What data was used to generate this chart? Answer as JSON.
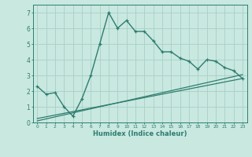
{
  "x": [
    0,
    1,
    2,
    3,
    4,
    5,
    6,
    7,
    8,
    9,
    10,
    11,
    12,
    13,
    14,
    15,
    16,
    17,
    18,
    19,
    20,
    21,
    22,
    23
  ],
  "y_main": [
    2.3,
    1.8,
    1.9,
    1.0,
    0.4,
    1.5,
    3.0,
    5.0,
    7.0,
    6.0,
    6.5,
    5.8,
    5.8,
    5.2,
    4.5,
    4.5,
    4.1,
    3.9,
    3.4,
    4.0,
    3.9,
    3.5,
    3.3,
    2.8
  ],
  "line_color": "#2e7d6e",
  "background_color": "#c8e8e0",
  "grid_color": "#a8cfc8",
  "xlabel": "Humidex (Indice chaleur)",
  "ylim": [
    0,
    7.5
  ],
  "xlim": [
    -0.5,
    23.5
  ],
  "trend1_y": [
    0.25,
    2.8
  ],
  "trend2_y": [
    0.1,
    3.05
  ],
  "trend_x": [
    0,
    23
  ]
}
